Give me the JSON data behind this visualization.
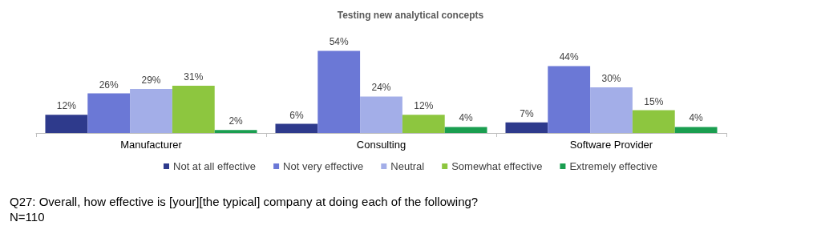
{
  "chart_data": {
    "type": "bar",
    "title": "Testing new analytical concepts",
    "categories": [
      "Manufacturer",
      "Consulting",
      "Software Provider"
    ],
    "series": [
      {
        "name": "Not at all effective",
        "color": "#2e3a8c",
        "values": [
          12,
          6,
          7
        ],
        "value_labels": [
          "12%",
          "6%",
          "7%"
        ]
      },
      {
        "name": "Not very effective",
        "color": "#6b78d6",
        "values": [
          26,
          54,
          44
        ],
        "value_labels": [
          "26%",
          "54%",
          "44%"
        ]
      },
      {
        "name": "Neutral",
        "color": "#a3aee8",
        "values": [
          29,
          24,
          30
        ],
        "value_labels": [
          "29%",
          "24%",
          "30%"
        ]
      },
      {
        "name": "Somewhat effective",
        "color": "#8dc63f",
        "values": [
          31,
          12,
          15
        ],
        "value_labels": [
          "31%",
          "12%",
          "15%"
        ]
      },
      {
        "name": "Extremely effective",
        "color": "#1a9e50",
        "values": [
          2,
          4,
          4
        ],
        "value_labels": [
          "2%",
          "4%",
          "4%"
        ]
      }
    ],
    "legend": "bottom",
    "annotations": [
      "Q27: Overall, how effective is [your][the typical] company at doing each of the following?",
      "N=110"
    ]
  }
}
